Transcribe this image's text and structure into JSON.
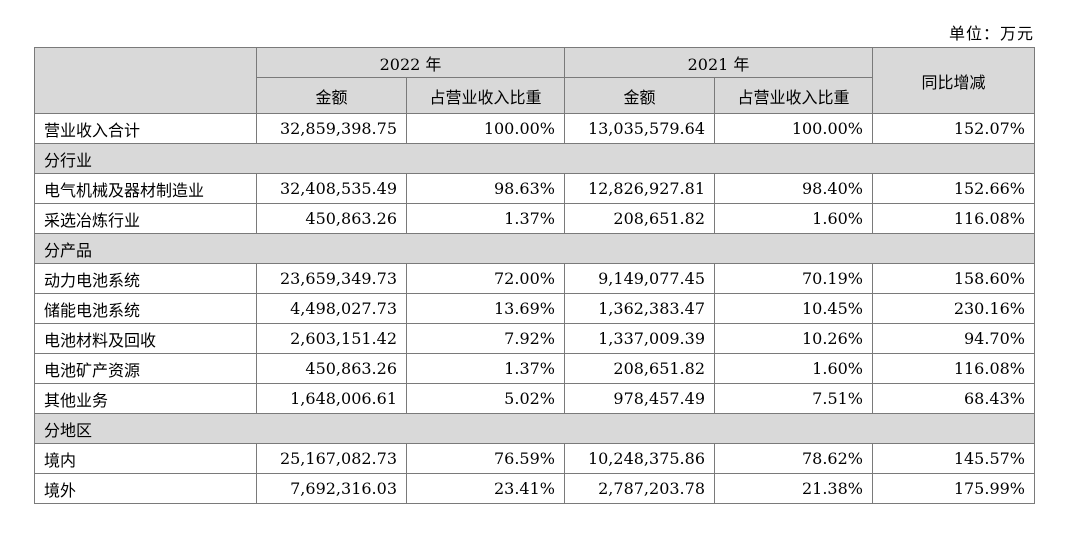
{
  "unit_note": "单位：万元",
  "header": {
    "year_2022": "2022 年",
    "year_2021": "2021 年",
    "yoy": "同比增减",
    "amount": "金额",
    "ratio": "占营业收入比重"
  },
  "total": {
    "label": "营业收入合计",
    "amount_2022": "32,859,398.75",
    "ratio_2022": "100.00%",
    "amount_2021": "13,035,579.64",
    "ratio_2021": "100.00%",
    "yoy": "152.07%"
  },
  "sections": [
    {
      "title": "分行业",
      "rows": [
        {
          "label": "电气机械及器材制造业",
          "amount_2022": "32,408,535.49",
          "ratio_2022": "98.63%",
          "amount_2021": "12,826,927.81",
          "ratio_2021": "98.40%",
          "yoy": "152.66%"
        },
        {
          "label": "采选冶炼行业",
          "amount_2022": "450,863.26",
          "ratio_2022": "1.37%",
          "amount_2021": "208,651.82",
          "ratio_2021": "1.60%",
          "yoy": "116.08%"
        }
      ]
    },
    {
      "title": "分产品",
      "rows": [
        {
          "label": "动力电池系统",
          "amount_2022": "23,659,349.73",
          "ratio_2022": "72.00%",
          "amount_2021": "9,149,077.45",
          "ratio_2021": "70.19%",
          "yoy": "158.60%"
        },
        {
          "label": "储能电池系统",
          "amount_2022": "4,498,027.73",
          "ratio_2022": "13.69%",
          "amount_2021": "1,362,383.47",
          "ratio_2021": "10.45%",
          "yoy": "230.16%"
        },
        {
          "label": "电池材料及回收",
          "amount_2022": "2,603,151.42",
          "ratio_2022": "7.92%",
          "amount_2021": "1,337,009.39",
          "ratio_2021": "10.26%",
          "yoy": "94.70%"
        },
        {
          "label": "电池矿产资源",
          "amount_2022": "450,863.26",
          "ratio_2022": "1.37%",
          "amount_2021": "208,651.82",
          "ratio_2021": "1.60%",
          "yoy": "116.08%"
        },
        {
          "label": "其他业务",
          "amount_2022": "1,648,006.61",
          "ratio_2022": "5.02%",
          "amount_2021": "978,457.49",
          "ratio_2021": "7.51%",
          "yoy": "68.43%"
        }
      ]
    },
    {
      "title": "分地区",
      "rows": [
        {
          "label": "境内",
          "amount_2022": "25,167,082.73",
          "ratio_2022": "76.59%",
          "amount_2021": "10,248,375.86",
          "ratio_2021": "78.62%",
          "yoy": "145.57%"
        },
        {
          "label": "境外",
          "amount_2022": "7,692,316.03",
          "ratio_2022": "23.41%",
          "amount_2021": "2,787,203.78",
          "ratio_2021": "21.38%",
          "yoy": "175.99%"
        }
      ]
    }
  ]
}
